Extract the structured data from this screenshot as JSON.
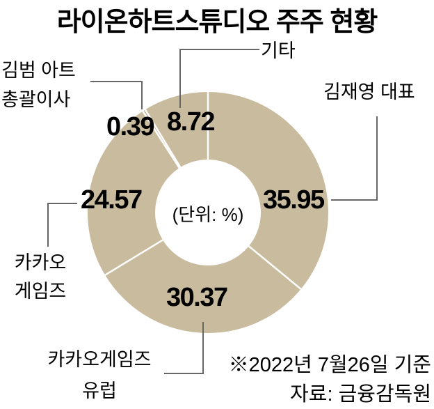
{
  "title": "라이온하트스튜디오 주주 현황",
  "chart_data": {
    "type": "pie",
    "subtype": "donut",
    "title": "라이온하트스튜디오 주주 현황",
    "unit_label": "(단위: %)",
    "start_angle_deg": 0,
    "direction": "clockwise",
    "segment_color": "#c9bb9d",
    "divider_color": "#ffffff",
    "segments": [
      {
        "label": "김재영 대표",
        "value": 35.95
      },
      {
        "label": "카카오게임즈 유럽",
        "value": 30.37
      },
      {
        "label": "카카오 게임즈",
        "value": 24.57
      },
      {
        "label": "김범 아트 총괄이사",
        "value": 0.39
      },
      {
        "label": "기타",
        "value": 8.72
      }
    ]
  },
  "callouts": {
    "etc": "기타",
    "ceo": "김재영 대표",
    "art_director_line1": "김범 아트",
    "art_director_line2": "총괄이사",
    "kakao_games_line1": "카카오",
    "kakao_games_line2": "게임즈",
    "kakao_games_europe_line1": "카카오게임즈",
    "kakao_games_europe_line2": "유럽"
  },
  "footnote": {
    "line1": "※2022년 7월26일 기준",
    "line2": "자료: 금융감독원"
  }
}
